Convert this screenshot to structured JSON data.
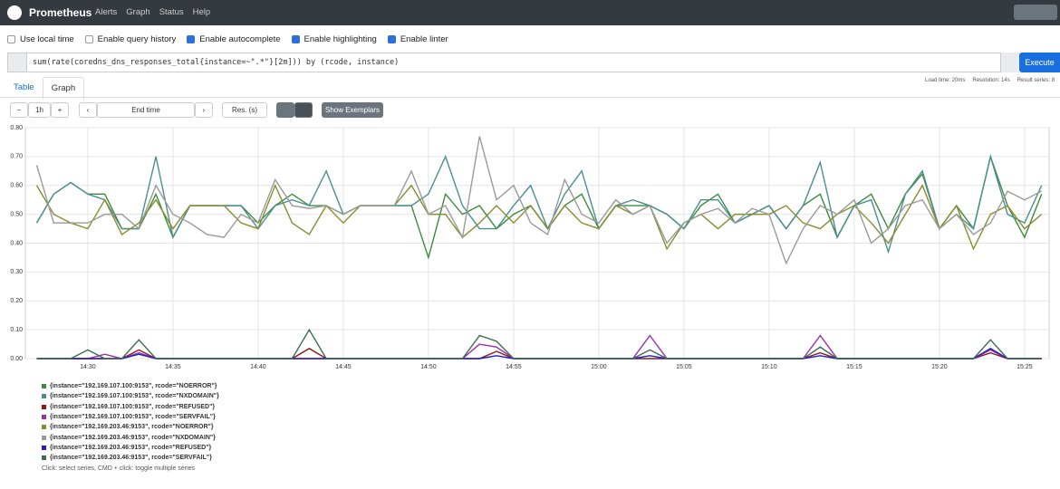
{
  "navbar": {
    "brand": "Prometheus",
    "links": [
      "Alerts",
      "Graph",
      "Status",
      "Help"
    ]
  },
  "options": [
    {
      "label": "Use local time",
      "checked": false
    },
    {
      "label": "Enable query history",
      "checked": false
    },
    {
      "label": "Enable autocomplete",
      "checked": true
    },
    {
      "label": "Enable highlighting",
      "checked": true
    },
    {
      "label": "Enable linter",
      "checked": true
    }
  ],
  "query": "sum(rate(coredns_dns_responses_total{instance=~\".*\"}[2m])) by (rcode, instance)",
  "execute": "Execute",
  "tabs": [
    "Table",
    "Graph"
  ],
  "active_tab": 1,
  "stats": [
    "Load time: 20ms",
    "Resolution: 14s",
    "Result series: 8"
  ],
  "controls": {
    "minus": "−",
    "range": "1h",
    "plus": "+",
    "end_time": "End time",
    "resolution": "Res. (s)",
    "exemplars": "Show Exemplars"
  },
  "chart_data": {
    "type": "line",
    "x": [
      "14:27",
      "14:28",
      "14:29",
      "14:30",
      "14:31",
      "14:32",
      "14:33",
      "14:34",
      "14:35",
      "14:36",
      "14:37",
      "14:38",
      "14:39",
      "14:40",
      "14:41",
      "14:42",
      "14:43",
      "14:44",
      "14:45",
      "14:46",
      "14:47",
      "14:48",
      "14:49",
      "14:50",
      "14:51",
      "14:52",
      "14:53",
      "14:54",
      "14:55",
      "14:56",
      "14:57",
      "14:58",
      "14:59",
      "15:00",
      "15:01",
      "15:02",
      "15:03",
      "15:04",
      "15:05",
      "15:06",
      "15:07",
      "15:08",
      "15:09",
      "15:10",
      "15:11",
      "15:12",
      "15:13",
      "15:14",
      "15:15",
      "15:16",
      "15:17",
      "15:18",
      "15:19",
      "15:20",
      "15:21",
      "15:22",
      "15:23",
      "15:24",
      "15:25",
      "15:26"
    ],
    "xticks": [
      "14:30",
      "14:35",
      "14:40",
      "14:45",
      "14:50",
      "14:55",
      "15:00",
      "15:05",
      "15:10",
      "15:15",
      "15:20",
      "15:25"
    ],
    "ylim": [
      0,
      0.8
    ],
    "yticks": [
      {
        "value": 0,
        "label": "0.00"
      },
      {
        "value": 0.1,
        "label": "0.10"
      },
      {
        "value": 0.2,
        "label": "0.20"
      },
      {
        "value": 0.3,
        "label": "0.30"
      },
      {
        "value": 0.4,
        "label": "0.40"
      },
      {
        "value": 0.5,
        "label": "0.50"
      },
      {
        "value": 0.6,
        "label": "0.60"
      },
      {
        "value": 0.7,
        "label": "0.70"
      },
      {
        "value": 0.8,
        "label": "0.80"
      }
    ],
    "grid": true,
    "series": [
      {
        "name": "{instance=\"192.169.107.100:9153\", rcode=\"NOERROR\"}",
        "color": "#3d8c3d",
        "values": [
          0.47,
          0.57,
          0.61,
          0.57,
          0.57,
          0.45,
          0.45,
          0.57,
          0.42,
          0.53,
          0.53,
          0.53,
          0.53,
          0.47,
          0.53,
          0.57,
          0.53,
          0.53,
          0.5,
          0.53,
          0.53,
          0.53,
          0.53,
          0.35,
          0.57,
          0.5,
          0.53,
          0.45,
          0.5,
          0.53,
          0.45,
          0.53,
          0.57,
          0.45,
          0.53,
          0.53,
          0.53,
          0.5,
          0.45,
          0.53,
          0.57,
          0.47,
          0.5,
          0.53,
          0.45,
          0.53,
          0.57,
          0.42,
          0.53,
          0.57,
          0.45,
          0.57,
          0.64,
          0.45,
          0.53,
          0.45,
          0.7,
          0.53,
          0.42,
          0.57
        ]
      },
      {
        "name": "{instance=\"192.169.107.100:9153\", rcode=\"NXDOMAIN\"}",
        "color": "#4a8f8f",
        "values": [
          0.47,
          0.57,
          0.61,
          0.57,
          0.55,
          0.45,
          0.45,
          0.7,
          0.42,
          0.53,
          0.53,
          0.53,
          0.53,
          0.45,
          0.53,
          0.55,
          0.53,
          0.65,
          0.5,
          0.53,
          0.53,
          0.53,
          0.53,
          0.57,
          0.7,
          0.53,
          0.45,
          0.45,
          0.53,
          0.6,
          0.45,
          0.57,
          0.65,
          0.45,
          0.53,
          0.55,
          0.53,
          0.5,
          0.45,
          0.55,
          0.55,
          0.47,
          0.5,
          0.53,
          0.45,
          0.53,
          0.68,
          0.42,
          0.53,
          0.55,
          0.37,
          0.57,
          0.65,
          0.45,
          0.5,
          0.45,
          0.7,
          0.5,
          0.47,
          0.6
        ]
      },
      {
        "name": "{instance=\"192.169.107.100:9153\", rcode=\"REFUSED\"}",
        "color": "#8b1a1a",
        "values": [
          0,
          0,
          0,
          0,
          0,
          0,
          0.03,
          0,
          0,
          0,
          0,
          0,
          0,
          0,
          0,
          0,
          0.035,
          0,
          0,
          0,
          0,
          0,
          0,
          0,
          0,
          0,
          0,
          0.025,
          0,
          0,
          0,
          0,
          0,
          0,
          0,
          0,
          0,
          0,
          0,
          0,
          0,
          0,
          0,
          0,
          0,
          0,
          0.02,
          0,
          0,
          0,
          0,
          0,
          0,
          0,
          0,
          0,
          0.02,
          0,
          0,
          0
        ]
      },
      {
        "name": "{instance=\"192.169.107.100:9153\", rcode=\"SERVFAIL\"}",
        "color": "#9b30a8",
        "values": [
          0,
          0,
          0,
          0,
          0.015,
          0,
          0.02,
          0,
          0,
          0,
          0,
          0,
          0,
          0,
          0,
          0,
          0,
          0,
          0,
          0,
          0,
          0,
          0,
          0,
          0,
          0,
          0.05,
          0.04,
          0,
          0,
          0,
          0,
          0,
          0,
          0,
          0,
          0.08,
          0,
          0,
          0,
          0,
          0,
          0,
          0,
          0,
          0,
          0.08,
          0,
          0,
          0,
          0,
          0,
          0,
          0,
          0,
          0,
          0.03,
          0,
          0,
          0
        ]
      },
      {
        "name": "{instance=\"192.169.203.46:9153\", rcode=\"NOERROR\"}",
        "color": "#8a8c2e",
        "values": [
          0.6,
          0.5,
          0.47,
          0.45,
          0.55,
          0.43,
          0.47,
          0.55,
          0.45,
          0.53,
          0.53,
          0.53,
          0.47,
          0.45,
          0.6,
          0.47,
          0.43,
          0.53,
          0.47,
          0.53,
          0.53,
          0.53,
          0.6,
          0.5,
          0.5,
          0.42,
          0.47,
          0.53,
          0.47,
          0.53,
          0.45,
          0.53,
          0.47,
          0.45,
          0.53,
          0.5,
          0.53,
          0.38,
          0.47,
          0.5,
          0.45,
          0.5,
          0.5,
          0.5,
          0.53,
          0.47,
          0.45,
          0.5,
          0.53,
          0.47,
          0.4,
          0.5,
          0.6,
          0.45,
          0.53,
          0.38,
          0.5,
          0.53,
          0.45,
          0.5
        ]
      },
      {
        "name": "{instance=\"192.169.203.46:9153\", rcode=\"NXDOMAIN\"}",
        "color": "#9a9a9a",
        "values": [
          0.67,
          0.47,
          0.47,
          0.47,
          0.5,
          0.5,
          0.45,
          0.6,
          0.5,
          0.47,
          0.43,
          0.42,
          0.5,
          0.47,
          0.62,
          0.53,
          0.52,
          0.53,
          0.5,
          0.53,
          0.53,
          0.53,
          0.65,
          0.5,
          0.53,
          0.42,
          0.77,
          0.55,
          0.6,
          0.47,
          0.43,
          0.62,
          0.5,
          0.47,
          0.55,
          0.5,
          0.53,
          0.4,
          0.47,
          0.5,
          0.52,
          0.47,
          0.52,
          0.5,
          0.33,
          0.45,
          0.53,
          0.5,
          0.55,
          0.4,
          0.45,
          0.53,
          0.55,
          0.45,
          0.5,
          0.43,
          0.47,
          0.58,
          0.55,
          0.58
        ]
      },
      {
        "name": "{instance=\"192.169.203.46:9153\", rcode=\"REFUSED\"}",
        "color": "#1f1fc8",
        "values": [
          0,
          0,
          0,
          0,
          0,
          0,
          0.015,
          0,
          0,
          0,
          0,
          0,
          0,
          0,
          0,
          0,
          0,
          0,
          0,
          0,
          0,
          0,
          0,
          0,
          0,
          0,
          0,
          0.01,
          0,
          0,
          0,
          0,
          0,
          0,
          0,
          0,
          0.01,
          0,
          0,
          0,
          0,
          0,
          0,
          0,
          0,
          0,
          0.01,
          0,
          0,
          0,
          0,
          0,
          0,
          0,
          0,
          0,
          0.035,
          0,
          0,
          0
        ]
      },
      {
        "name": "{instance=\"192.169.203.46:9153\", rcode=\"SERVFAIL\"}",
        "color": "#3c6e50",
        "values": [
          0,
          0,
          0,
          0.03,
          0,
          0,
          0.065,
          0,
          0,
          0,
          0,
          0,
          0,
          0,
          0,
          0,
          0.1,
          0,
          0,
          0,
          0,
          0,
          0,
          0,
          0,
          0,
          0.08,
          0.06,
          0,
          0,
          0,
          0,
          0,
          0,
          0,
          0,
          0.03,
          0,
          0,
          0,
          0,
          0,
          0,
          0,
          0,
          0,
          0.04,
          0,
          0,
          0,
          0,
          0,
          0,
          0,
          0,
          0,
          0.065,
          0,
          0,
          0
        ]
      }
    ]
  },
  "hint": "Click: select series, CMD + click: toggle multiple series"
}
